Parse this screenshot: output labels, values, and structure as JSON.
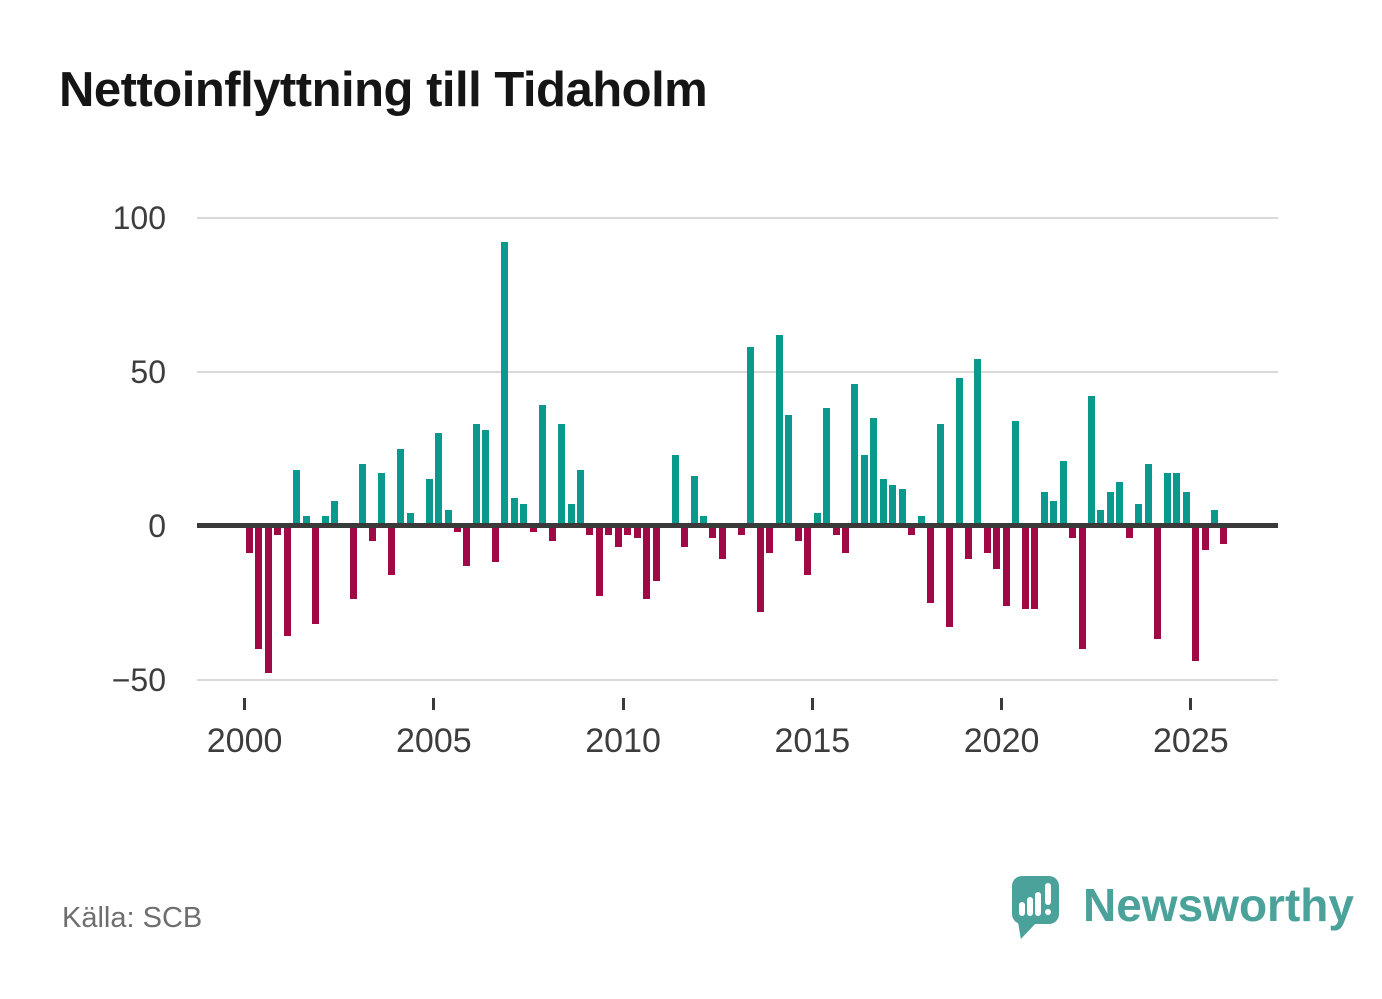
{
  "title": "Nettoinflyttning till Tidaholm",
  "source": "Källa: SCB",
  "branding": {
    "name": "Newsworthy",
    "logo_icon": "speech-bubble-bar-chart-icon"
  },
  "colors": {
    "positive_bar": "#099a8d",
    "negative_bar": "#a10946",
    "zero_axis": "#3a3a3a",
    "gridline": "#d9d9d9",
    "axis_text": "#3d3d3d",
    "title_text": "#151515",
    "source_text": "#6e6e6e",
    "brand_teal": "#4aa29a"
  },
  "chart_data": {
    "type": "bar",
    "title": "Nettoinflyttning till Tidaholm",
    "frequency": "quarterly",
    "start_year": 2000,
    "end_year": 2025,
    "values": [
      -9,
      -40,
      -48,
      -3,
      -36,
      18,
      3,
      -32,
      3,
      8,
      0,
      -24,
      20,
      -5,
      17,
      -16,
      25,
      4,
      0,
      15,
      30,
      5,
      -2,
      -13,
      33,
      31,
      -12,
      92,
      9,
      7,
      -2,
      39,
      -5,
      33,
      7,
      18,
      -3,
      -23,
      -3,
      -7,
      -3,
      -4,
      -24,
      -18,
      0,
      23,
      -7,
      16,
      3,
      -4,
      -11,
      0,
      -3,
      58,
      -28,
      -9,
      62,
      36,
      -5,
      -16,
      4,
      38,
      -3,
      -9,
      46,
      23,
      35,
      15,
      13,
      12,
      -3,
      3,
      -25,
      33,
      -33,
      48,
      -11,
      54,
      -9,
      -14,
      -26,
      34,
      -27,
      -27,
      11,
      8,
      21,
      -4,
      -40,
      42,
      5,
      11,
      14,
      -4,
      7,
      20,
      -37,
      17,
      17,
      11,
      -44,
      -8,
      5,
      -6
    ],
    "y_gridlines": [
      100,
      50,
      -50
    ],
    "y_tick_labels": [
      100,
      50,
      0,
      -50
    ],
    "x_tick_years": [
      2000,
      2005,
      2010,
      2015,
      2020,
      2025
    ],
    "ylim": [
      -55,
      105
    ],
    "grid": "horizontal-only",
    "legend": "none",
    "xlabel": "",
    "ylabel": ""
  }
}
